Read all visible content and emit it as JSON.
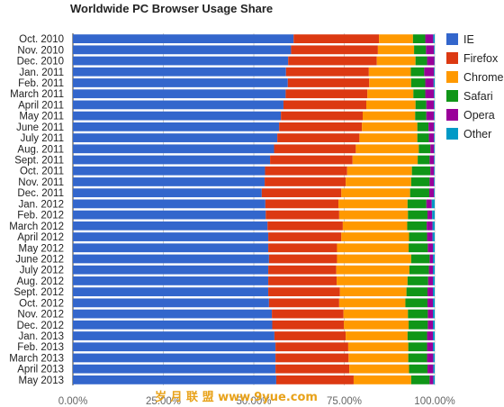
{
  "chart_data": {
    "type": "bar",
    "orientation": "horizontal",
    "stacked": true,
    "title": "Worldwide PC Browser Usage Share",
    "xlabel": "",
    "ylabel": "",
    "xlim": [
      0,
      100
    ],
    "x_ticks": [
      "0.00%",
      "25.00%",
      "50.00%",
      "75.00%",
      "100.00%"
    ],
    "x_tick_values": [
      0,
      25,
      50,
      75,
      100
    ],
    "grid": true,
    "legend_position": "right",
    "categories": [
      "Oct. 2010",
      "Nov. 2010",
      "Dec. 2010",
      "Jan. 2011",
      "Feb. 2011",
      "March 2011",
      "April 2011",
      "May 2011",
      "June 2011",
      "July 2011",
      "Aug. 2011",
      "Sept. 2011",
      "Oct. 2011",
      "Nov. 2011",
      "Dec. 2011",
      "Jan. 2012",
      "Feb. 2012",
      "March 2012",
      "April 2012",
      "May 2012",
      "June 2012",
      "July 2012",
      "Aug. 2012",
      "Sept. 2012",
      "Oct. 2012",
      "Nov. 2012",
      "Dec. 2012",
      "Jan. 2013",
      "Feb. 2013",
      "March 2013",
      "April 2013",
      "May 2013"
    ],
    "series": [
      {
        "name": "IE",
        "color": "#3366cc",
        "values": [
          61.0,
          60.3,
          59.5,
          58.9,
          59.4,
          58.8,
          58.2,
          57.5,
          57.0,
          56.5,
          55.6,
          54.5,
          53.1,
          53.0,
          52.2,
          53.2,
          53.3,
          53.8,
          54.0,
          54.0,
          54.2,
          54.0,
          54.0,
          54.0,
          54.2,
          55.0,
          55.1,
          55.7,
          56.0,
          56.0,
          56.0,
          56.2
        ]
      },
      {
        "name": "Firefox",
        "color": "#dc3912",
        "values": [
          23.6,
          24.0,
          24.5,
          22.9,
          22.5,
          22.6,
          22.9,
          22.6,
          22.9,
          22.7,
          22.6,
          22.8,
          22.7,
          22.4,
          22.0,
          20.2,
          20.3,
          20.8,
          20.2,
          19.0,
          18.8,
          18.8,
          18.9,
          19.8,
          19.4,
          19.8,
          19.8,
          19.7,
          20.1,
          20.2,
          20.4,
          21.4
        ]
      },
      {
        "name": "Chrome",
        "color": "#ff9900",
        "values": [
          9.4,
          10.0,
          10.7,
          11.6,
          11.6,
          12.7,
          13.6,
          14.5,
          15.3,
          16.0,
          17.4,
          18.0,
          17.9,
          18.1,
          19.0,
          19.1,
          19.0,
          17.8,
          18.7,
          19.8,
          20.5,
          20.2,
          19.6,
          18.4,
          18.3,
          17.8,
          17.9,
          17.1,
          16.6,
          16.5,
          16.5,
          15.9
        ]
      },
      {
        "name": "Safari",
        "color": "#109618",
        "values": [
          3.4,
          3.3,
          3.2,
          3.7,
          3.9,
          3.3,
          3.0,
          3.1,
          3.1,
          3.2,
          3.2,
          3.3,
          5.1,
          5.1,
          5.3,
          5.2,
          5.4,
          5.4,
          5.0,
          5.3,
          5.1,
          5.4,
          5.7,
          5.8,
          6.1,
          5.5,
          5.3,
          5.4,
          5.2,
          5.2,
          5.1,
          5.1
        ]
      },
      {
        "name": "Opera",
        "color": "#990099",
        "values": [
          2.2,
          2.2,
          2.0,
          2.7,
          2.3,
          2.4,
          2.1,
          2.1,
          1.5,
          1.4,
          1.0,
          1.2,
          1.0,
          1.2,
          1.3,
          1.5,
          1.3,
          1.6,
          1.5,
          1.4,
          0.9,
          1.1,
          1.3,
          1.5,
          1.5,
          1.4,
          1.4,
          1.6,
          1.6,
          1.7,
          1.6,
          1.0
        ]
      },
      {
        "name": "Other",
        "color": "#0099c6",
        "values": [
          0.4,
          0.2,
          0.1,
          0.2,
          0.3,
          0.2,
          0.2,
          0.2,
          0.2,
          0.2,
          0.2,
          0.2,
          0.2,
          0.2,
          0.2,
          0.8,
          0.7,
          0.6,
          0.6,
          0.5,
          0.5,
          0.5,
          0.5,
          0.5,
          0.5,
          0.5,
          0.5,
          0.5,
          0.5,
          0.4,
          0.4,
          0.4
        ]
      }
    ]
  },
  "watermark": {
    "text": "岁 月 联 盟 www.9yue.com",
    "color": "#e8a21a"
  }
}
